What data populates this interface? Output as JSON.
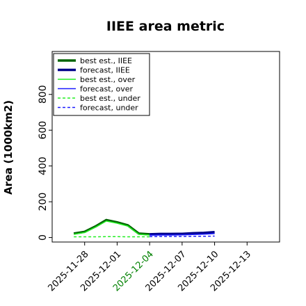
{
  "chart_data": {
    "type": "line",
    "title": "IIEE area metric",
    "xlabel": "",
    "ylabel": "Area (1000km2)",
    "x_axis": "date",
    "xlim": [
      "2025-11-25",
      "2025-12-16"
    ],
    "ylim": [
      -25,
      1040
    ],
    "yticks": [
      0,
      200,
      400,
      600,
      800
    ],
    "xticks": [
      {
        "label": "2025-11-28",
        "color": "#000000"
      },
      {
        "label": "2025-12-01",
        "color": "#000000"
      },
      {
        "label": "2025-12-04",
        "color": "#008000"
      },
      {
        "label": "2025-12-07",
        "color": "#000000"
      },
      {
        "label": "2025-12-10",
        "color": "#000000"
      },
      {
        "label": "2025-12-13",
        "color": "#000000"
      }
    ],
    "grid": false,
    "legend": {
      "position": "top-left"
    },
    "series": [
      {
        "name": "best est., IIEE",
        "color": "#006400",
        "width": 3.5,
        "dash": "solid",
        "x": [
          "2025-11-27",
          "2025-11-28",
          "2025-11-29",
          "2025-11-30",
          "2025-12-01",
          "2025-12-02",
          "2025-12-03",
          "2025-12-04"
        ],
        "y": [
          22,
          32,
          62,
          98,
          85,
          68,
          22,
          18
        ]
      },
      {
        "name": "forecast, IIEE",
        "color": "#00008b",
        "width": 3.5,
        "dash": "solid",
        "x": [
          "2025-12-04",
          "2025-12-05",
          "2025-12-06",
          "2025-12-07",
          "2025-12-08",
          "2025-12-09",
          "2025-12-10"
        ],
        "y": [
          18,
          20,
          20,
          21,
          24,
          26,
          30
        ]
      },
      {
        "name": "best est., over",
        "color": "#22ee22",
        "width": 1.5,
        "dash": "solid",
        "x": [
          "2025-11-27",
          "2025-11-28",
          "2025-11-29",
          "2025-11-30",
          "2025-12-01",
          "2025-12-02",
          "2025-12-03",
          "2025-12-04"
        ],
        "y": [
          18,
          28,
          58,
          92,
          80,
          64,
          18,
          14
        ]
      },
      {
        "name": "forecast, over",
        "color": "#1a1aff",
        "width": 1.5,
        "dash": "solid",
        "x": [
          "2025-12-04",
          "2025-12-05",
          "2025-12-06",
          "2025-12-07",
          "2025-12-08",
          "2025-12-09",
          "2025-12-10"
        ],
        "y": [
          13,
          14,
          14,
          15,
          17,
          19,
          22
        ]
      },
      {
        "name": "best est., under",
        "color": "#22ee22",
        "width": 1.5,
        "dash": "dashed",
        "x": [
          "2025-11-27",
          "2025-11-28",
          "2025-11-29",
          "2025-11-30",
          "2025-12-01",
          "2025-12-02",
          "2025-12-03",
          "2025-12-04"
        ],
        "y": [
          4,
          4,
          4,
          5,
          5,
          4,
          4,
          4
        ]
      },
      {
        "name": "forecast, under",
        "color": "#1a1aff",
        "width": 1.5,
        "dash": "dashed",
        "x": [
          "2025-12-04",
          "2025-12-05",
          "2025-12-06",
          "2025-12-07",
          "2025-12-08",
          "2025-12-09",
          "2025-12-10"
        ],
        "y": [
          5,
          6,
          6,
          6,
          7,
          7,
          8
        ]
      }
    ]
  }
}
